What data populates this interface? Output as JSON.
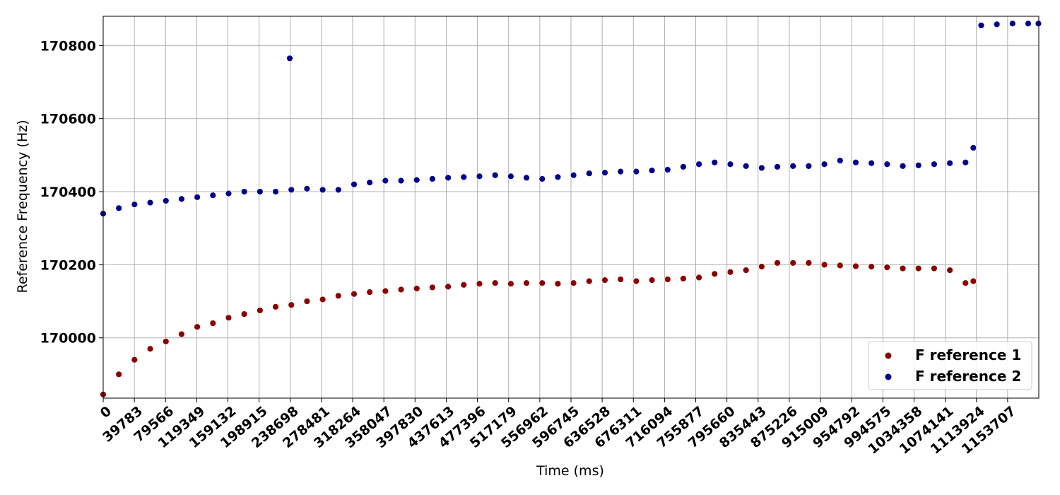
{
  "chart_data": {
    "type": "scatter",
    "title": "",
    "xlabel": "Time (ms)",
    "ylabel": "Reference Frequency (Hz)",
    "xlim": [
      0,
      1193490
    ],
    "ylim": [
      169835,
      170880
    ],
    "grid": true,
    "legend_position": "bottom-right",
    "x_ticks": [
      0,
      39783,
      79566,
      119349,
      159132,
      198915,
      238698,
      278481,
      318264,
      358047,
      397830,
      437613,
      477396,
      517179,
      556962,
      596745,
      636528,
      676311,
      716094,
      755877,
      795660,
      835443,
      875226,
      915009,
      954792,
      994575,
      1034358,
      1074141,
      1113924,
      1153707
    ],
    "x_tick_labels": [
      "0",
      "39783",
      "79566",
      "119349",
      "159132",
      "198915",
      "238698",
      "278481",
      "318264",
      "358047",
      "397830",
      "437613",
      "477396",
      "517179",
      "556962",
      "596745",
      "636528",
      "676311",
      "716094",
      "755877",
      "795660",
      "835443",
      "875226",
      "915009",
      "954792",
      "994575",
      "1034358",
      "1074141",
      "1113924",
      "1153707"
    ],
    "y_ticks": [
      170000,
      170200,
      170400,
      170600,
      170800
    ],
    "y_tick_labels": [
      "170000",
      "170200",
      "170400",
      "170600",
      "170800"
    ],
    "series": [
      {
        "name": "F reference 1",
        "color": "#8b0000",
        "x": [
          0,
          20000,
          40000,
          60000,
          80000,
          100000,
          120000,
          140000,
          160000,
          180000,
          200000,
          220000,
          240000,
          260000,
          280000,
          300000,
          320000,
          340000,
          360000,
          380000,
          400000,
          420000,
          440000,
          460000,
          480000,
          500000,
          520000,
          540000,
          560000,
          580000,
          600000,
          620000,
          640000,
          660000,
          680000,
          700000,
          720000,
          740000,
          760000,
          780000,
          800000,
          820000,
          840000,
          860000,
          880000,
          900000,
          920000,
          940000,
          960000,
          980000,
          1000000,
          1020000,
          1040000,
          1060000,
          1080000,
          1100000,
          1110000
        ],
        "y": [
          169845,
          169900,
          169940,
          169970,
          169990,
          170010,
          170030,
          170040,
          170055,
          170065,
          170075,
          170085,
          170090,
          170100,
          170105,
          170115,
          170120,
          170125,
          170128,
          170132,
          170135,
          170138,
          170140,
          170145,
          170148,
          170150,
          170148,
          170150,
          170150,
          170148,
          170150,
          170155,
          170158,
          170160,
          170155,
          170158,
          170160,
          170162,
          170165,
          170175,
          170180,
          170185,
          170195,
          170205,
          170205,
          170205,
          170200,
          170198,
          170196,
          170195,
          170193,
          170190,
          170190,
          170190,
          170185,
          170150,
          170155
        ]
      },
      {
        "name": "F reference 2",
        "color": "#00008b",
        "x": [
          0,
          20000,
          40000,
          60000,
          80000,
          100000,
          120000,
          140000,
          160000,
          180000,
          200000,
          220000,
          238000,
          240000,
          260000,
          280000,
          300000,
          320000,
          340000,
          360000,
          380000,
          400000,
          420000,
          440000,
          460000,
          480000,
          500000,
          520000,
          540000,
          560000,
          580000,
          600000,
          620000,
          640000,
          660000,
          680000,
          700000,
          720000,
          740000,
          760000,
          780000,
          800000,
          820000,
          840000,
          860000,
          880000,
          900000,
          920000,
          940000,
          960000,
          980000,
          1000000,
          1020000,
          1040000,
          1060000,
          1080000,
          1100000,
          1110000,
          1120000,
          1140000,
          1160000,
          1180000,
          1193000
        ],
        "y": [
          170340,
          170355,
          170365,
          170370,
          170375,
          170380,
          170385,
          170390,
          170395,
          170400,
          170400,
          170400,
          170765,
          170405,
          170408,
          170405,
          170405,
          170420,
          170425,
          170430,
          170430,
          170432,
          170435,
          170438,
          170440,
          170442,
          170445,
          170442,
          170438,
          170435,
          170440,
          170445,
          170450,
          170452,
          170455,
          170455,
          170458,
          170460,
          170468,
          170475,
          170480,
          170475,
          170470,
          170465,
          170468,
          170470,
          170470,
          170475,
          170485,
          170480,
          170478,
          170475,
          170470,
          170472,
          170475,
          170478,
          170480,
          170520,
          170855,
          170858,
          170860,
          170860,
          170860
        ]
      }
    ]
  }
}
